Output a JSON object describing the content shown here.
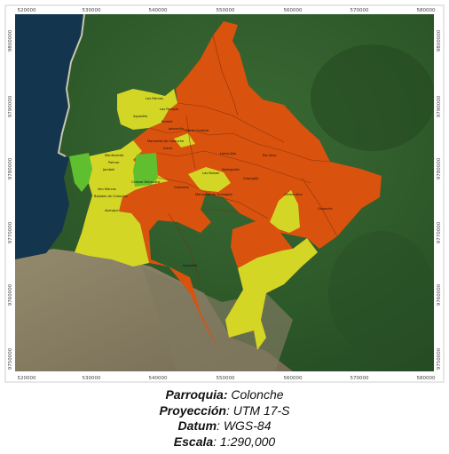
{
  "map": {
    "x_ticks": [
      "520000",
      "530000",
      "540000",
      "550000",
      "560000",
      "570000",
      "580000"
    ],
    "y_ticks": [
      "9800000",
      "9790000",
      "9780000",
      "9770000",
      "9760000",
      "9750000"
    ],
    "place_labels": [
      "Las Palmas",
      "Las Pampas",
      "Aguadita",
      "Bambil",
      "Jaboncillo",
      "Febres Cordero",
      "Manantial de Colonche",
      "Iceral",
      "Monteverde",
      "Palmar",
      "Jambelí",
      "Loma Alta",
      "Río Seco",
      "Salanguillo",
      "Las Balsas",
      "Guangala",
      "Cerezal Bellavista",
      "Calicanto",
      "San Marcos",
      "Manantial de Guangala",
      "Bajadas de Colonche",
      "Clementina",
      "Colonche",
      "Ayangue",
      "Aguadita"
    ],
    "colors": {
      "high": "#d9520e",
      "medium": "#d4d626",
      "low": "#5fbf2e",
      "sea": "#14354e",
      "forest": "#2e5a2a",
      "dry": "#857a60"
    }
  },
  "caption": {
    "parroquia_label": "Parroquia:",
    "parroquia_value": "Colonche",
    "proyeccion_label": "Proyección",
    "proyeccion_value": ": UTM 17-S",
    "datum_label": "Datum",
    "datum_value": ": WGS-84",
    "escala_label": "Escala",
    "escala_value": ": 1:290,000"
  }
}
